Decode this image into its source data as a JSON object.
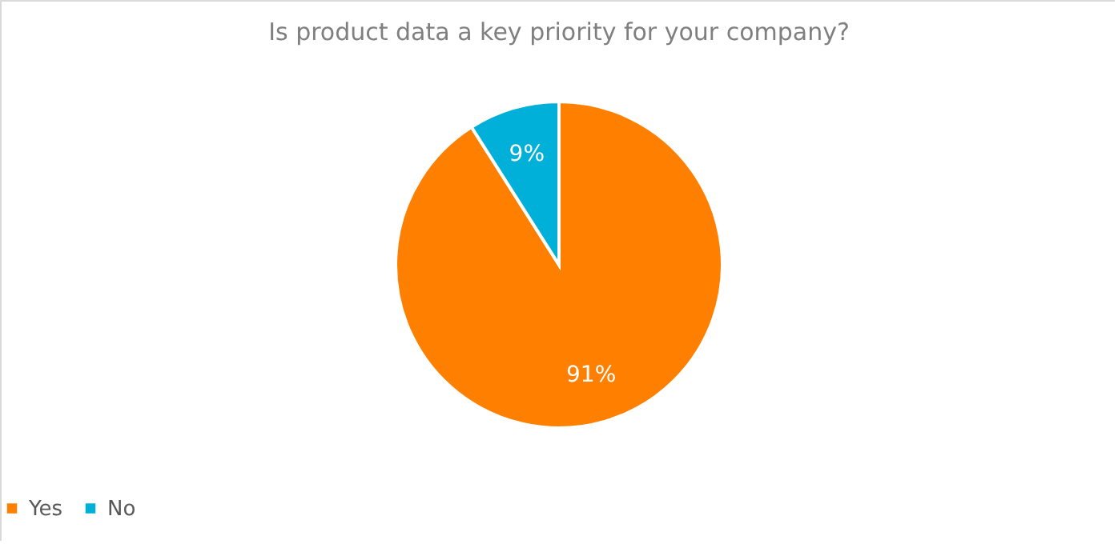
{
  "chart_data": {
    "type": "pie",
    "title": "Is product data a key priority for your company?",
    "categories": [
      "Yes",
      "No"
    ],
    "values": [
      91,
      9
    ],
    "colors": [
      "#ff8000",
      "#00b0d8"
    ],
    "value_labels": [
      "91%",
      "9%"
    ],
    "legend": "bottom"
  }
}
